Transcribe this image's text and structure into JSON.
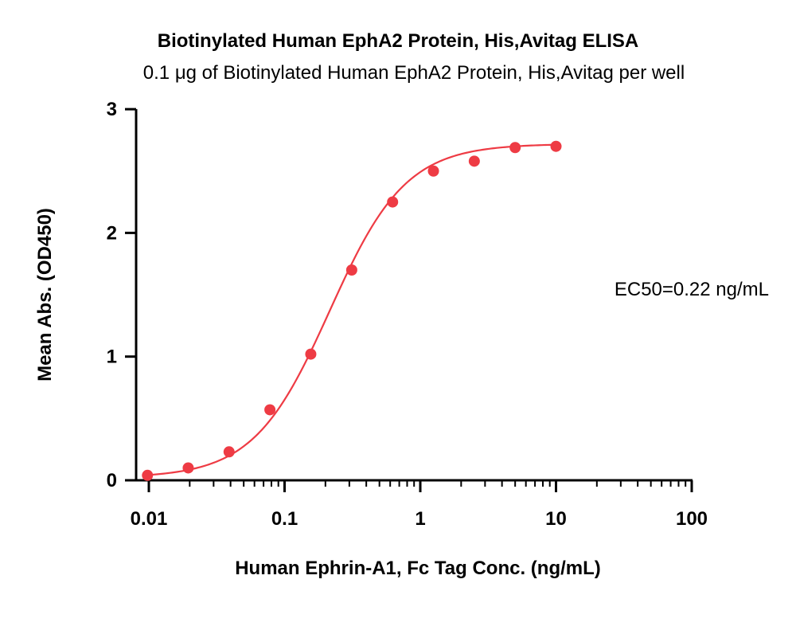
{
  "chart_data": {
    "type": "scatter",
    "title": "Biotinylated Human EphA2 Protein, His,Avitag ELISA",
    "subtitle": "0.1 μg of Biotinylated Human EphA2 Protein, His,Avitag per well",
    "xlabel": "Human Ephrin-A1, Fc Tag Conc. (ng/mL)",
    "ylabel": "Mean Abs. (OD450)",
    "x_scale": "log",
    "xlim": [
      0.01,
      100
    ],
    "ylim": [
      0,
      3
    ],
    "x_ticks": [
      {
        "value": 0.01,
        "label": "0.01"
      },
      {
        "value": 0.1,
        "label": "0.1"
      },
      {
        "value": 1,
        "label": "1"
      },
      {
        "value": 10,
        "label": "10"
      },
      {
        "value": 100,
        "label": "100"
      }
    ],
    "y_ticks": [
      {
        "value": 0,
        "label": "0"
      },
      {
        "value": 1,
        "label": "1"
      },
      {
        "value": 2,
        "label": "2"
      },
      {
        "value": 3,
        "label": "3"
      }
    ],
    "grid": false,
    "series": [
      {
        "x": [
          0.00977,
          0.0195,
          0.039,
          0.078,
          0.156,
          0.3125,
          0.625,
          1.25,
          2.5,
          5,
          10
        ],
        "y": [
          0.04,
          0.1,
          0.23,
          0.57,
          1.02,
          1.7,
          2.25,
          2.5,
          2.58,
          2.69,
          2.7
        ],
        "color": "#ee3b44",
        "fit": "4PL"
      }
    ],
    "annotation": "EC50=0.22 ng/mL"
  }
}
